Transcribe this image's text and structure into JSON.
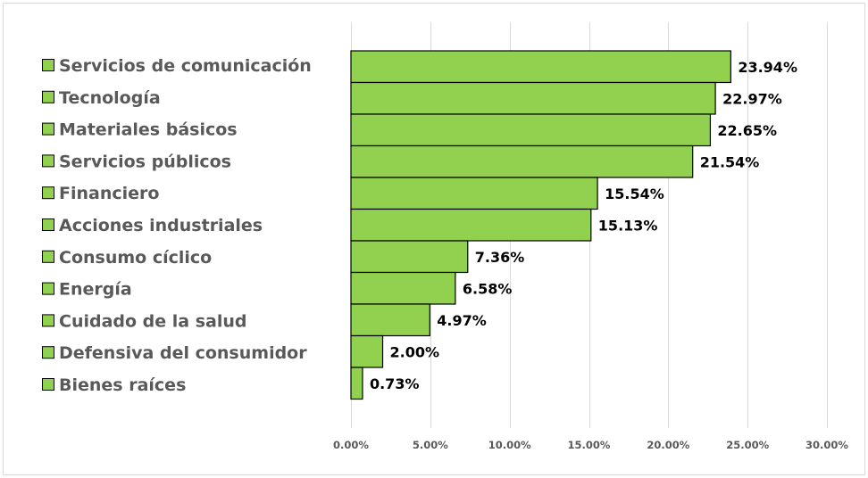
{
  "chart_data": {
    "type": "bar",
    "orientation": "horizontal",
    "categories": [
      "Servicios de comunicación",
      "Tecnología",
      "Materiales básicos",
      "Servicios públicos",
      "Financiero",
      "Acciones industriales",
      "Consumo cíclico",
      "Energía",
      "Cuidado de la salud",
      "Defensiva del consumidor",
      "Bienes raíces"
    ],
    "values": [
      23.94,
      22.97,
      22.65,
      21.54,
      15.54,
      15.13,
      7.36,
      6.58,
      4.97,
      2.0,
      0.73
    ],
    "data_labels": [
      "23.94%",
      "22.97%",
      "22.65%",
      "21.54%",
      "15.54%",
      "15.13%",
      "7.36%",
      "6.58%",
      "4.97%",
      "2.00%",
      "0.73%"
    ],
    "xlim": [
      0,
      30
    ],
    "x_ticks": [
      0,
      5,
      10,
      15,
      20,
      25,
      30
    ],
    "x_tick_labels": [
      "0.00%",
      "5.00%",
      "10.00%",
      "15.00%",
      "20.00%",
      "25.00%",
      "30.00%"
    ],
    "grid": "vertical",
    "legend_placement": "left",
    "colors": {
      "bar": "#92d050",
      "bar_border": "#000000",
      "grid": "#d9d9d9",
      "text": "#595959"
    }
  }
}
